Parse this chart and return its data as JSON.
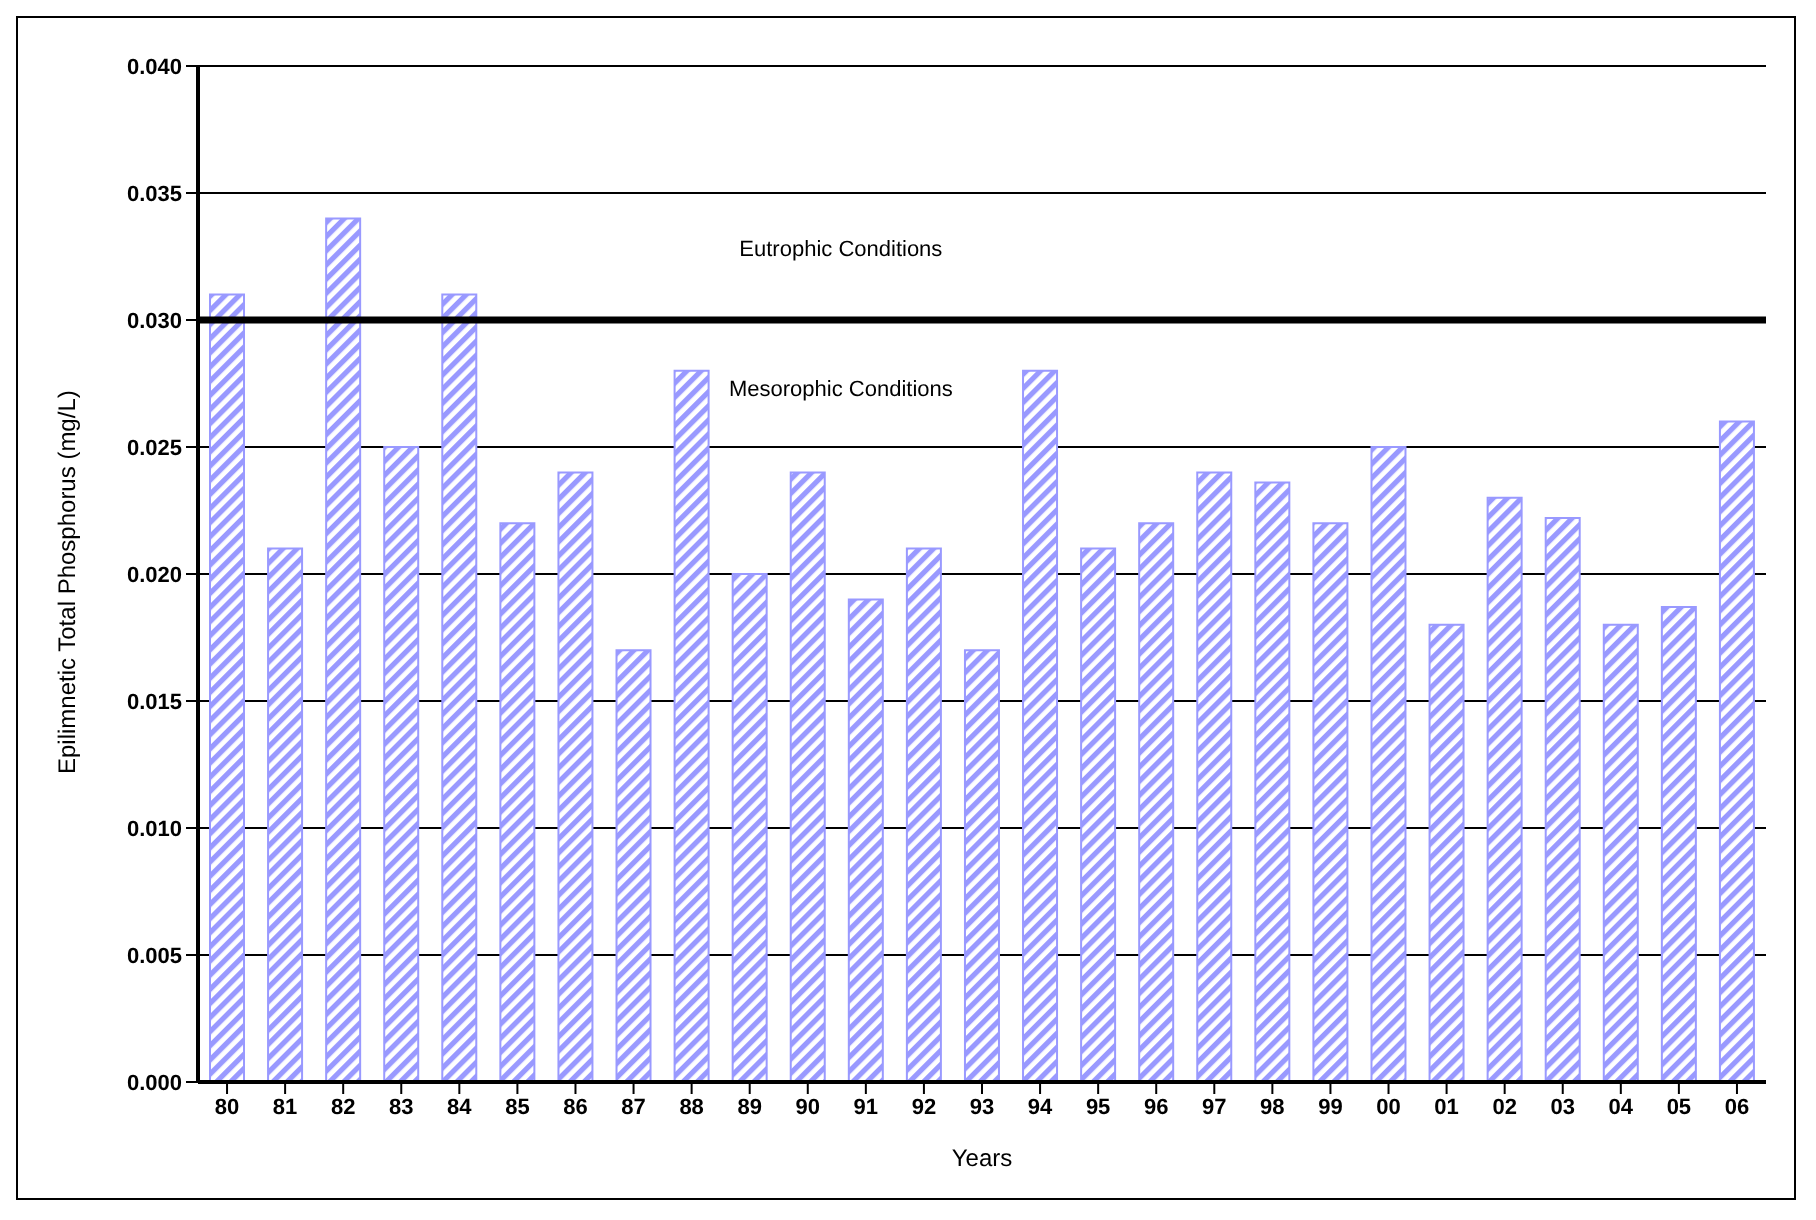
{
  "chart_data": {
    "type": "bar",
    "xlabel": "Years",
    "ylabel": "Epilimnetic Total Phosphorus (mg/L)",
    "categories": [
      "80",
      "81",
      "82",
      "83",
      "84",
      "85",
      "86",
      "87",
      "88",
      "89",
      "90",
      "91",
      "92",
      "93",
      "94",
      "95",
      "96",
      "97",
      "98",
      "99",
      "00",
      "01",
      "02",
      "03",
      "04",
      "05",
      "06"
    ],
    "values": [
      0.031,
      0.021,
      0.034,
      0.025,
      0.031,
      0.022,
      0.024,
      0.017,
      0.028,
      0.02,
      0.024,
      0.019,
      0.021,
      0.017,
      0.028,
      0.021,
      0.022,
      0.024,
      0.0236,
      0.022,
      0.025,
      0.018,
      0.023,
      0.0222,
      0.018,
      0.0187,
      0.026
    ],
    "color": "#9999ff",
    "ylim": [
      0,
      0.04
    ],
    "yticks": [
      {
        "value": 0,
        "label": "0.000"
      },
      {
        "value": 0.005,
        "label": "0.005"
      },
      {
        "value": 0.01,
        "label": "0.010"
      },
      {
        "value": 0.015,
        "label": "0.015"
      },
      {
        "value": 0.02,
        "label": "0.020"
      },
      {
        "value": 0.025,
        "label": "0.025"
      },
      {
        "value": 0.03,
        "label": "0.030"
      },
      {
        "value": 0.035,
        "label": "0.035"
      },
      {
        "value": 0.04,
        "label": "0.040"
      }
    ],
    "grid": "y",
    "legend": false,
    "ref_lines": [
      {
        "axis": "y",
        "value": 0.03,
        "color": "#000000"
      }
    ],
    "annotations": [
      "Eutrophic Conditions",
      "Mesorophic Conditions"
    ]
  }
}
